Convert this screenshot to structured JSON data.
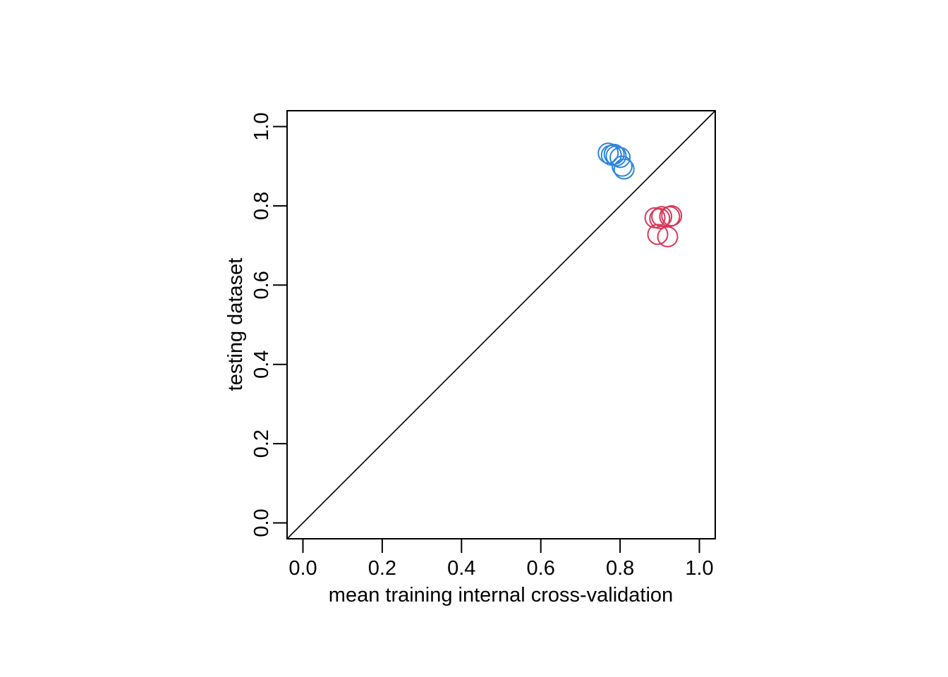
{
  "chart_data": {
    "type": "scatter",
    "title": "",
    "xlabel": "mean training internal cross-validation",
    "ylabel": "testing dataset",
    "xlim": [
      -0.04,
      1.04
    ],
    "ylim": [
      -0.04,
      1.04
    ],
    "x_ticks": [
      "0.0",
      "0.2",
      "0.4",
      "0.6",
      "0.8",
      "1.0"
    ],
    "y_ticks": [
      "0.0",
      "0.2",
      "0.4",
      "0.6",
      "0.8",
      "1.0"
    ],
    "grid": false,
    "legend": "none",
    "reference_line": {
      "type": "identity",
      "from": [
        -0.04,
        -0.04
      ],
      "to": [
        1.04,
        1.04
      ]
    },
    "marker": "open-circle",
    "series": [
      {
        "color": "#2E86DE",
        "points": [
          {
            "x": 0.77,
            "y": 0.933
          },
          {
            "x": 0.778,
            "y": 0.928
          },
          {
            "x": 0.785,
            "y": 0.93
          },
          {
            "x": 0.79,
            "y": 0.926
          },
          {
            "x": 0.8,
            "y": 0.922
          },
          {
            "x": 0.805,
            "y": 0.9
          },
          {
            "x": 0.81,
            "y": 0.893
          }
        ]
      },
      {
        "color": "#D6395A",
        "points": [
          {
            "x": 0.888,
            "y": 0.77
          },
          {
            "x": 0.895,
            "y": 0.728
          },
          {
            "x": 0.9,
            "y": 0.768
          },
          {
            "x": 0.905,
            "y": 0.773
          },
          {
            "x": 0.92,
            "y": 0.722
          },
          {
            "x": 0.925,
            "y": 0.773
          },
          {
            "x": 0.93,
            "y": 0.775
          }
        ]
      }
    ]
  }
}
